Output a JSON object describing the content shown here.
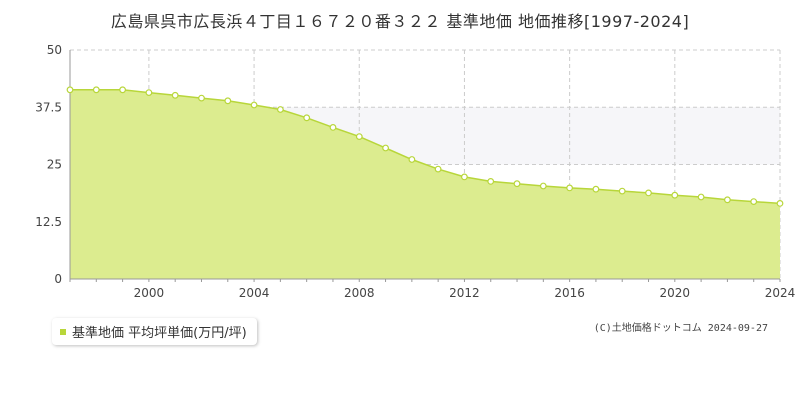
{
  "title": "広島県呉市広長浜４丁目１６７２０番３２２ 基準地価 地価推移[1997-2024]",
  "legend": {
    "label": "基準地価 平均坪単価(万円/坪)"
  },
  "copyright": "(C)土地価格ドットコム 2024-09-27",
  "colors": {
    "fill": "#dcec8f",
    "line": "#b8d63a",
    "band": "#f6f6f9",
    "grid": "#cccccc",
    "marker_stroke": "#b8d63a",
    "marker_fill": "#ffffff"
  },
  "chart_data": {
    "type": "area",
    "title": "広島県呉市広長浜４丁目１６７２０番３２２ 基準地価 地価推移[1997-2024]",
    "x": [
      1997,
      1998,
      1999,
      2000,
      2001,
      2002,
      2003,
      2004,
      2005,
      2006,
      2007,
      2008,
      2009,
      2010,
      2011,
      2012,
      2013,
      2014,
      2015,
      2016,
      2017,
      2018,
      2019,
      2020,
      2021,
      2022,
      2023,
      2024
    ],
    "series": [
      {
        "name": "基準地価 平均坪単価(万円/坪)",
        "values": [
          41.3,
          41.3,
          41.3,
          40.7,
          40.1,
          39.5,
          38.9,
          38.0,
          37.0,
          35.2,
          33.1,
          31.1,
          28.6,
          26.1,
          24.0,
          22.3,
          21.3,
          20.8,
          20.3,
          19.9,
          19.6,
          19.2,
          18.8,
          18.3,
          17.9,
          17.3,
          16.9,
          16.5
        ]
      }
    ],
    "xlim": [
      1997,
      2024
    ],
    "ylim": [
      0,
      50
    ],
    "xticks": [
      "2000",
      "2004",
      "2008",
      "2012",
      "2016",
      "2020",
      "2024"
    ],
    "yticks": [
      "0",
      "12.5",
      "25",
      "37.5",
      "50"
    ],
    "xlabel": "",
    "ylabel": "",
    "grid": true,
    "legend_position": "bottom-left"
  }
}
